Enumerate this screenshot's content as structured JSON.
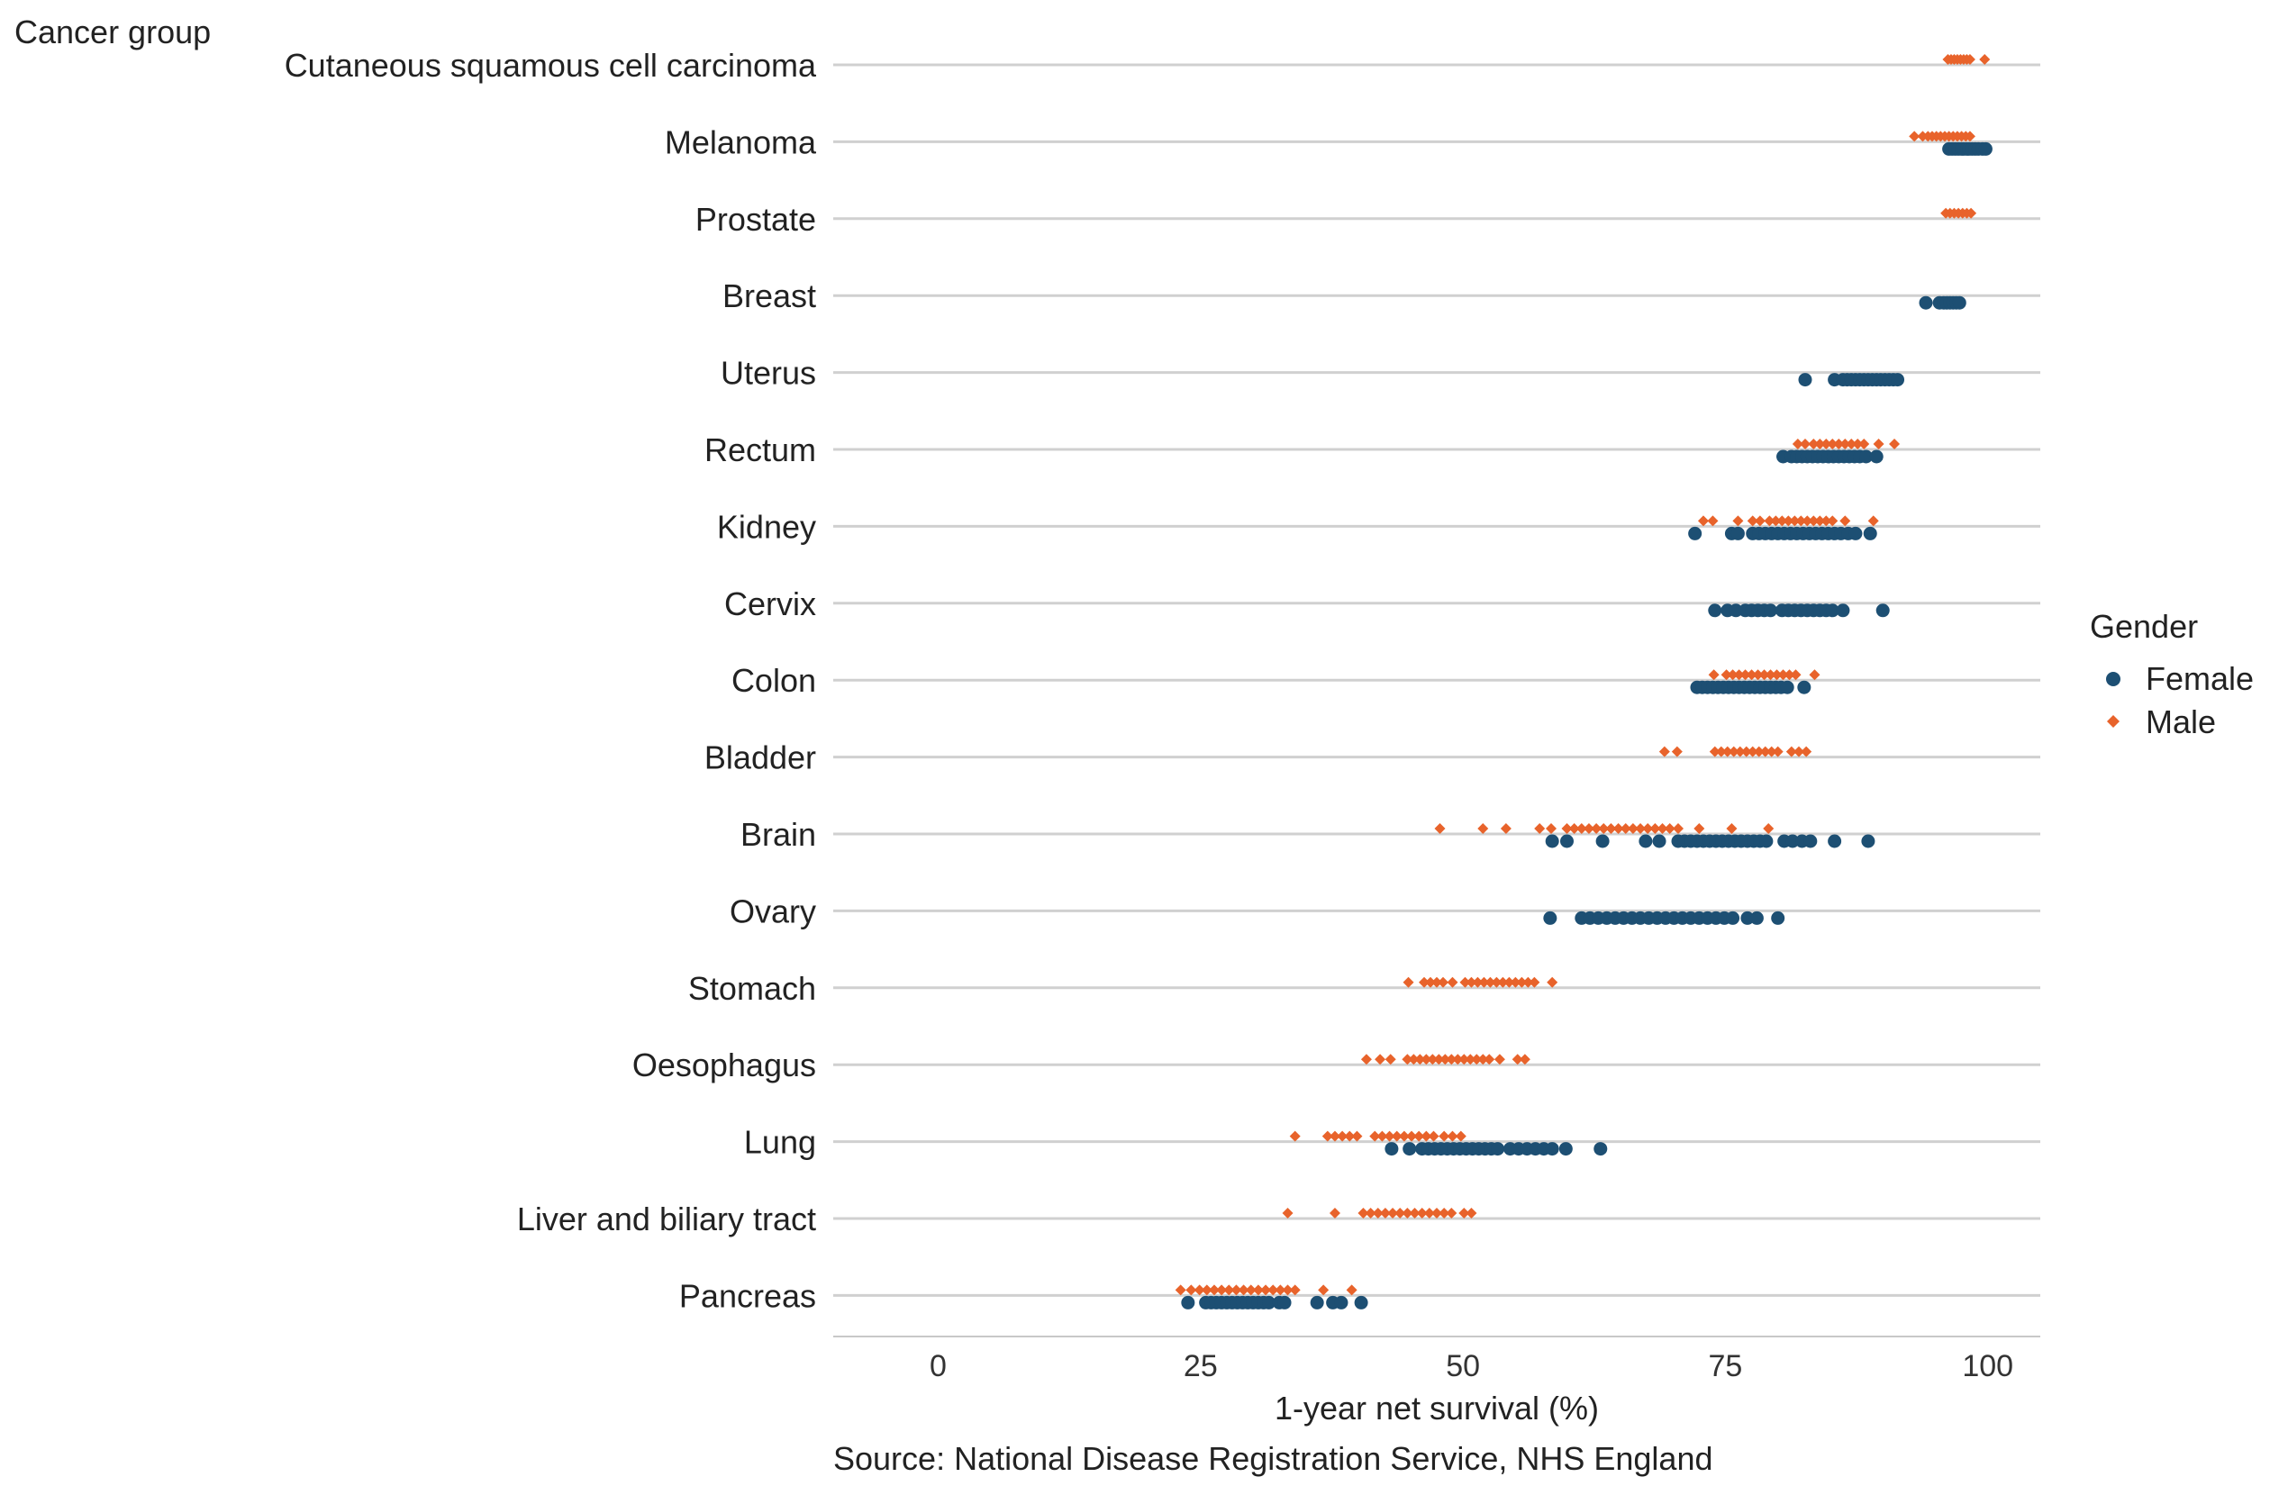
{
  "chart_data": {
    "type": "scatter",
    "y_title": "Cancer group",
    "xlabel": "1-year net survival (%)",
    "caption": "Source: National Disease Registration Service, NHS England",
    "xlim": [
      -10,
      105
    ],
    "x_ticks": [
      0,
      25,
      50,
      75,
      100
    ],
    "grid": "horizontal",
    "legend": {
      "title": "Gender",
      "position": "right",
      "items": [
        {
          "name": "Female",
          "color": "#1d4f73",
          "shape": "circle"
        },
        {
          "name": "Male",
          "color": "#e8632b",
          "shape": "diamond"
        }
      ]
    },
    "categories": [
      "Cutaneous squamous cell carcinoma",
      "Melanoma",
      "Prostate",
      "Breast",
      "Uterus",
      "Rectum",
      "Kidney",
      "Cervix",
      "Colon",
      "Bladder",
      "Brain",
      "Ovary",
      "Stomach",
      "Oesophagus",
      "Lung",
      "Liver and biliary tract",
      "Pancreas"
    ],
    "series": [
      {
        "name": "Female",
        "color": "#1d4f73",
        "values": {
          "Melanoma": [
            96.3,
            96.6,
            96.9,
            97.2,
            97.5,
            97.7,
            98.0,
            98.2,
            98.5,
            98.8,
            99.1,
            99.5,
            99.8
          ],
          "Breast": [
            94.1,
            95.4,
            95.8,
            96.1,
            96.4,
            96.7,
            97.0,
            97.3
          ],
          "Uterus": [
            82.6,
            85.4,
            86.2,
            86.6,
            87.0,
            87.4,
            87.8,
            88.2,
            88.6,
            89.0,
            89.4,
            89.8,
            90.2,
            90.6,
            91.0,
            91.4
          ],
          "Rectum": [
            80.5,
            81.3,
            81.8,
            82.3,
            82.8,
            83.3,
            83.8,
            84.3,
            84.8,
            85.3,
            85.8,
            86.3,
            86.8,
            87.3,
            87.8,
            88.4,
            89.4
          ],
          "Kidney": [
            72.1,
            75.6,
            76.2,
            77.6,
            78.2,
            78.8,
            79.4,
            80.0,
            80.6,
            81.2,
            81.8,
            82.4,
            83.0,
            83.6,
            84.2,
            84.8,
            85.4,
            86.0,
            86.7,
            87.4,
            88.8
          ],
          "Cervix": [
            74.0,
            75.2,
            76.0,
            76.9,
            77.5,
            78.1,
            78.7,
            79.3,
            80.4,
            81.0,
            81.6,
            82.2,
            82.8,
            83.4,
            84.0,
            84.6,
            85.2,
            86.2,
            90.0
          ],
          "Colon": [
            72.3,
            72.8,
            73.3,
            73.8,
            74.3,
            74.8,
            75.3,
            75.8,
            76.3,
            76.8,
            77.3,
            77.8,
            78.3,
            78.8,
            79.3,
            79.8,
            80.3,
            80.9,
            82.5
          ],
          "Brain": [
            58.5,
            59.9,
            63.3,
            67.4,
            68.7,
            70.5,
            71.1,
            71.7,
            72.3,
            72.9,
            73.5,
            74.1,
            74.7,
            75.3,
            75.9,
            76.5,
            77.1,
            77.7,
            78.3,
            78.9,
            80.6,
            81.4,
            82.3,
            83.1,
            85.4,
            88.6
          ],
          "Ovary": [
            58.3,
            61.3,
            62.1,
            62.9,
            63.7,
            64.5,
            65.3,
            66.1,
            66.9,
            67.7,
            68.5,
            69.3,
            70.1,
            70.9,
            71.7,
            72.5,
            73.3,
            74.1,
            74.9,
            75.7,
            77.1,
            78.0,
            80.0
          ],
          "Lung": [
            43.2,
            44.9,
            46.1,
            46.7,
            47.3,
            47.9,
            48.5,
            49.1,
            49.7,
            50.3,
            50.9,
            51.5,
            52.1,
            52.7,
            53.3,
            54.5,
            55.3,
            56.1,
            56.9,
            57.7,
            58.5,
            59.8,
            63.1
          ],
          "Pancreas": [
            23.8,
            25.5,
            26.0,
            26.5,
            27.0,
            27.5,
            28.0,
            28.5,
            29.0,
            29.5,
            30.0,
            30.5,
            31.0,
            31.5,
            32.5,
            33.0,
            36.1,
            37.6,
            38.4,
            40.3
          ]
        }
      },
      {
        "name": "Male",
        "color": "#e8632b",
        "values": {
          "Cutaneous squamous cell carcinoma": [
            96.2,
            96.5,
            96.8,
            97.1,
            97.4,
            97.7,
            98.0,
            98.3,
            99.7
          ],
          "Melanoma": [
            93.0,
            93.8,
            94.3,
            94.7,
            95.1,
            95.5,
            95.9,
            96.3,
            96.7,
            97.1,
            97.5,
            97.9,
            98.3
          ],
          "Prostate": [
            96.0,
            96.4,
            96.8,
            97.2,
            97.6,
            98.0,
            98.4
          ],
          "Rectum": [
            81.9,
            82.6,
            83.4,
            84.0,
            84.6,
            85.2,
            85.8,
            86.4,
            87.0,
            87.6,
            88.2,
            89.6,
            91.1
          ],
          "Kidney": [
            72.9,
            73.8,
            76.2,
            77.6,
            78.3,
            79.2,
            79.8,
            80.4,
            81.0,
            81.6,
            82.2,
            82.8,
            83.4,
            84.0,
            84.6,
            85.2,
            86.4,
            89.1
          ],
          "Colon": [
            73.9,
            75.1,
            75.7,
            76.3,
            76.9,
            77.5,
            78.1,
            78.7,
            79.3,
            79.9,
            80.5,
            81.1,
            81.7,
            83.5
          ],
          "Bladder": [
            69.2,
            70.4,
            74.0,
            74.6,
            75.2,
            75.8,
            76.4,
            77.0,
            77.6,
            78.2,
            78.8,
            79.4,
            80.0,
            81.3,
            82.0,
            82.7
          ],
          "Brain": [
            47.8,
            51.9,
            54.1,
            57.3,
            58.4,
            59.9,
            60.6,
            61.3,
            62.0,
            62.7,
            63.4,
            64.1,
            64.8,
            65.5,
            66.2,
            66.9,
            67.6,
            68.3,
            69.0,
            69.7,
            70.5,
            72.5,
            75.6,
            79.1
          ],
          "Stomach": [
            44.8,
            46.3,
            46.9,
            47.5,
            48.1,
            49.0,
            50.2,
            50.8,
            51.4,
            52.0,
            52.6,
            53.2,
            53.8,
            54.4,
            55.0,
            55.6,
            56.2,
            56.8,
            58.5
          ],
          "Oesophagus": [
            40.8,
            42.1,
            43.1,
            44.7,
            45.3,
            45.9,
            46.5,
            47.1,
            47.7,
            48.3,
            48.9,
            49.5,
            50.1,
            50.7,
            51.3,
            51.9,
            52.5,
            53.5,
            55.2,
            55.9
          ],
          "Lung": [
            34.0,
            37.1,
            37.8,
            38.5,
            39.2,
            39.9,
            41.6,
            42.3,
            43.0,
            43.7,
            44.4,
            45.1,
            45.8,
            46.5,
            47.2,
            48.2,
            49.0,
            49.8
          ],
          "Liver and biliary tract": [
            33.3,
            37.8,
            40.5,
            41.2,
            41.9,
            42.6,
            43.3,
            44.0,
            44.7,
            45.4,
            46.1,
            46.8,
            47.5,
            48.2,
            48.9,
            50.1,
            50.8
          ],
          "Pancreas": [
            23.1,
            24.1,
            24.9,
            25.6,
            26.3,
            27.0,
            27.7,
            28.4,
            29.1,
            29.8,
            30.5,
            31.2,
            31.9,
            32.6,
            33.3,
            34.0,
            36.7,
            39.4
          ]
        }
      }
    ]
  }
}
